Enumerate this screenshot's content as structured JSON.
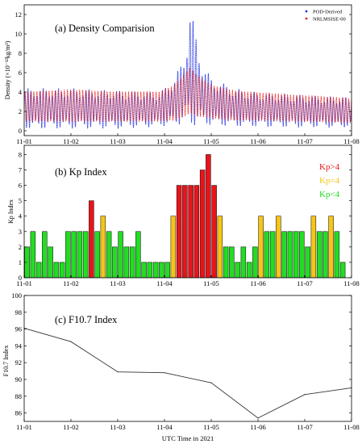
{
  "figure": {
    "x_label": "UTC Time in 2021",
    "x_ticks": [
      "11-01",
      "11-02",
      "11-03",
      "11-04",
      "11-05",
      "11-06",
      "11-07",
      "11-08"
    ]
  },
  "chart_data": [
    {
      "type": "line",
      "title": "(a) Density Comparision",
      "ylabel": "Density (×10⁻¹³kg/m³)",
      "ylim": [
        -0.5,
        13
      ],
      "yticks": [
        0,
        2,
        4,
        6,
        8,
        10,
        12
      ],
      "x_days": [
        0,
        7
      ],
      "series": [
        {
          "name": "POD-Derived",
          "color": "#1f2fe0",
          "note_amplitude": "oscillating orbit-period density, storm peak near 11-04 12:00",
          "envelope": {
            "day": [
              0,
              1,
              2,
              2.9,
              3.2,
              3.4,
              3.5,
              3.55,
              3.65,
              3.8,
              4.0,
              4.5,
              5,
              6,
              7
            ],
            "center": [
              2.3,
              2.3,
              2.2,
              2.2,
              3.0,
              4.0,
              5.5,
              6.5,
              5.5,
              3.8,
              3.0,
              2.4,
              2.2,
              2.0,
              1.9
            ],
            "amplitude": [
              1.9,
              1.9,
              1.8,
              1.6,
              2.2,
              3.0,
              4.0,
              5.8,
              4.5,
              3.0,
              2.2,
              1.8,
              1.6,
              1.5,
              1.4
            ]
          }
        },
        {
          "name": "NRLMSISE-00",
          "color": "#e31a1c",
          "envelope": {
            "day": [
              0,
              1,
              2,
              2.9,
              3.2,
              3.4,
              3.55,
              3.7,
              4.0,
              4.5,
              5,
              6,
              7
            ],
            "center": [
              2.5,
              2.6,
              2.5,
              2.5,
              2.9,
              3.6,
              4.2,
              3.6,
              3.0,
              2.6,
              2.5,
              2.3,
              2.1
            ],
            "amplitude": [
              1.6,
              1.7,
              1.6,
              1.6,
              1.9,
              2.3,
              2.5,
              2.2,
              1.8,
              1.6,
              1.5,
              1.4,
              1.3
            ]
          }
        }
      ]
    },
    {
      "type": "bar",
      "title": "(b) Kp Index",
      "ylabel": "Kp Index",
      "ylim": [
        0,
        8.6
      ],
      "yticks": [
        0,
        1,
        2,
        3,
        4,
        5,
        6,
        7,
        8
      ],
      "bin_hours": 3,
      "legend": [
        {
          "label": "Kp>4",
          "color": "#e8141b"
        },
        {
          "label": "Kp=4",
          "color": "#f5c518"
        },
        {
          "label": "Kp<4",
          "color": "#22dd22"
        }
      ],
      "values": [
        2,
        3,
        1,
        3,
        2,
        1,
        1,
        3,
        3,
        3,
        3,
        5,
        3,
        4,
        3,
        2,
        3,
        2,
        2,
        3,
        1,
        1,
        1,
        1,
        1,
        4,
        6,
        6,
        6,
        6,
        7,
        8,
        6,
        4,
        2,
        2,
        1,
        2,
        1,
        2,
        4,
        3,
        3,
        4,
        3,
        3,
        3,
        3,
        2,
        4,
        3,
        3,
        4,
        3,
        1
      ]
    },
    {
      "type": "line",
      "title": "(c) F10.7 Index",
      "ylabel": "F10.7 Index",
      "ylim": [
        85,
        100
      ],
      "yticks": [
        86,
        88,
        90,
        92,
        94,
        96,
        98,
        100
      ],
      "x": [
        0,
        1,
        2,
        3,
        4,
        5,
        6,
        7
      ],
      "values": [
        96.1,
        94.5,
        90.9,
        90.8,
        89.6,
        85.4,
        88.2,
        89.0
      ],
      "color": "#333333"
    }
  ]
}
